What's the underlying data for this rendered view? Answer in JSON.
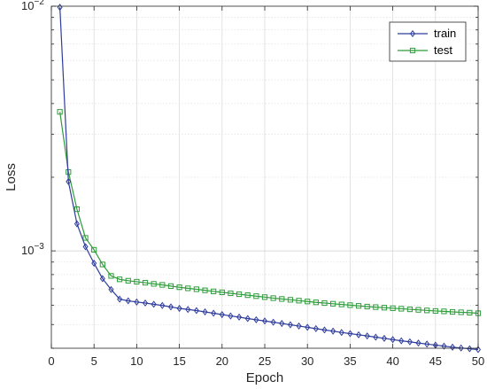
{
  "chart_data": {
    "type": "line",
    "xlabel": "Epoch",
    "ylabel": "Loss",
    "xlim": [
      0,
      50
    ],
    "ylim": [
      0.0004,
      0.01
    ],
    "yscale": "log",
    "grid": true,
    "legend_position": "top-right",
    "x_ticks": [
      0,
      5,
      10,
      15,
      20,
      25,
      30,
      35,
      40,
      45,
      50
    ],
    "x_tick_labels": [
      "0",
      "5",
      "10",
      "15",
      "20",
      "25",
      "30",
      "35",
      "40",
      "45",
      "50"
    ],
    "y_major_ticks": [
      0.001,
      0.01
    ],
    "y_tick_labels": [
      {
        "base": "10",
        "exp": "−3",
        "value": 0.001
      },
      {
        "base": "10",
        "exp": "−2",
        "value": 0.01
      }
    ],
    "x": [
      1,
      2,
      3,
      4,
      5,
      6,
      7,
      8,
      9,
      10,
      11,
      12,
      13,
      14,
      15,
      16,
      17,
      18,
      19,
      20,
      21,
      22,
      23,
      24,
      25,
      26,
      27,
      28,
      29,
      30,
      31,
      32,
      33,
      34,
      35,
      36,
      37,
      38,
      39,
      40,
      41,
      42,
      43,
      44,
      45,
      46,
      47,
      48,
      49,
      50
    ],
    "series": [
      {
        "name": "train",
        "color": "#2e3d9c",
        "marker": "diamond",
        "values": [
          0.0099,
          0.00192,
          0.00129,
          0.00104,
          0.00089,
          0.00077,
          0.000695,
          0.000635,
          0.000625,
          0.000618,
          0.000612,
          0.000605,
          0.000598,
          0.00059,
          0.000582,
          0.000576,
          0.00057,
          0.000563,
          0.000556,
          0.000549,
          0.000542,
          0.000536,
          0.000529,
          0.000523,
          0.000517,
          0.000511,
          0.000505,
          0.000499,
          0.000493,
          0.000487,
          0.000481,
          0.000475,
          0.00047,
          0.000464,
          0.000459,
          0.000454,
          0.000449,
          0.000444,
          0.000439,
          0.000434,
          0.000429,
          0.000425,
          0.00042,
          0.000416,
          0.000412,
          0.000408,
          0.000404,
          0.000401,
          0.000398,
          0.000395
        ]
      },
      {
        "name": "test",
        "color": "#2e9c3a",
        "marker": "square",
        "values": [
          0.0037,
          0.0021,
          0.00148,
          0.00113,
          0.00101,
          0.00088,
          0.00079,
          0.000765,
          0.000755,
          0.000748,
          0.000741,
          0.000733,
          0.000726,
          0.000718,
          0.00071,
          0.000703,
          0.000697,
          0.00069,
          0.000683,
          0.000677,
          0.000671,
          0.000665,
          0.000659,
          0.000653,
          0.000647,
          0.000641,
          0.000636,
          0.000631,
          0.000626,
          0.000621,
          0.000616,
          0.000612,
          0.000608,
          0.000604,
          0.0006,
          0.000596,
          0.000592,
          0.000589,
          0.000586,
          0.000583,
          0.00058,
          0.000577,
          0.000574,
          0.000571,
          0.000568,
          0.000566,
          0.000563,
          0.000561,
          0.000559,
          0.000556
        ]
      }
    ]
  }
}
